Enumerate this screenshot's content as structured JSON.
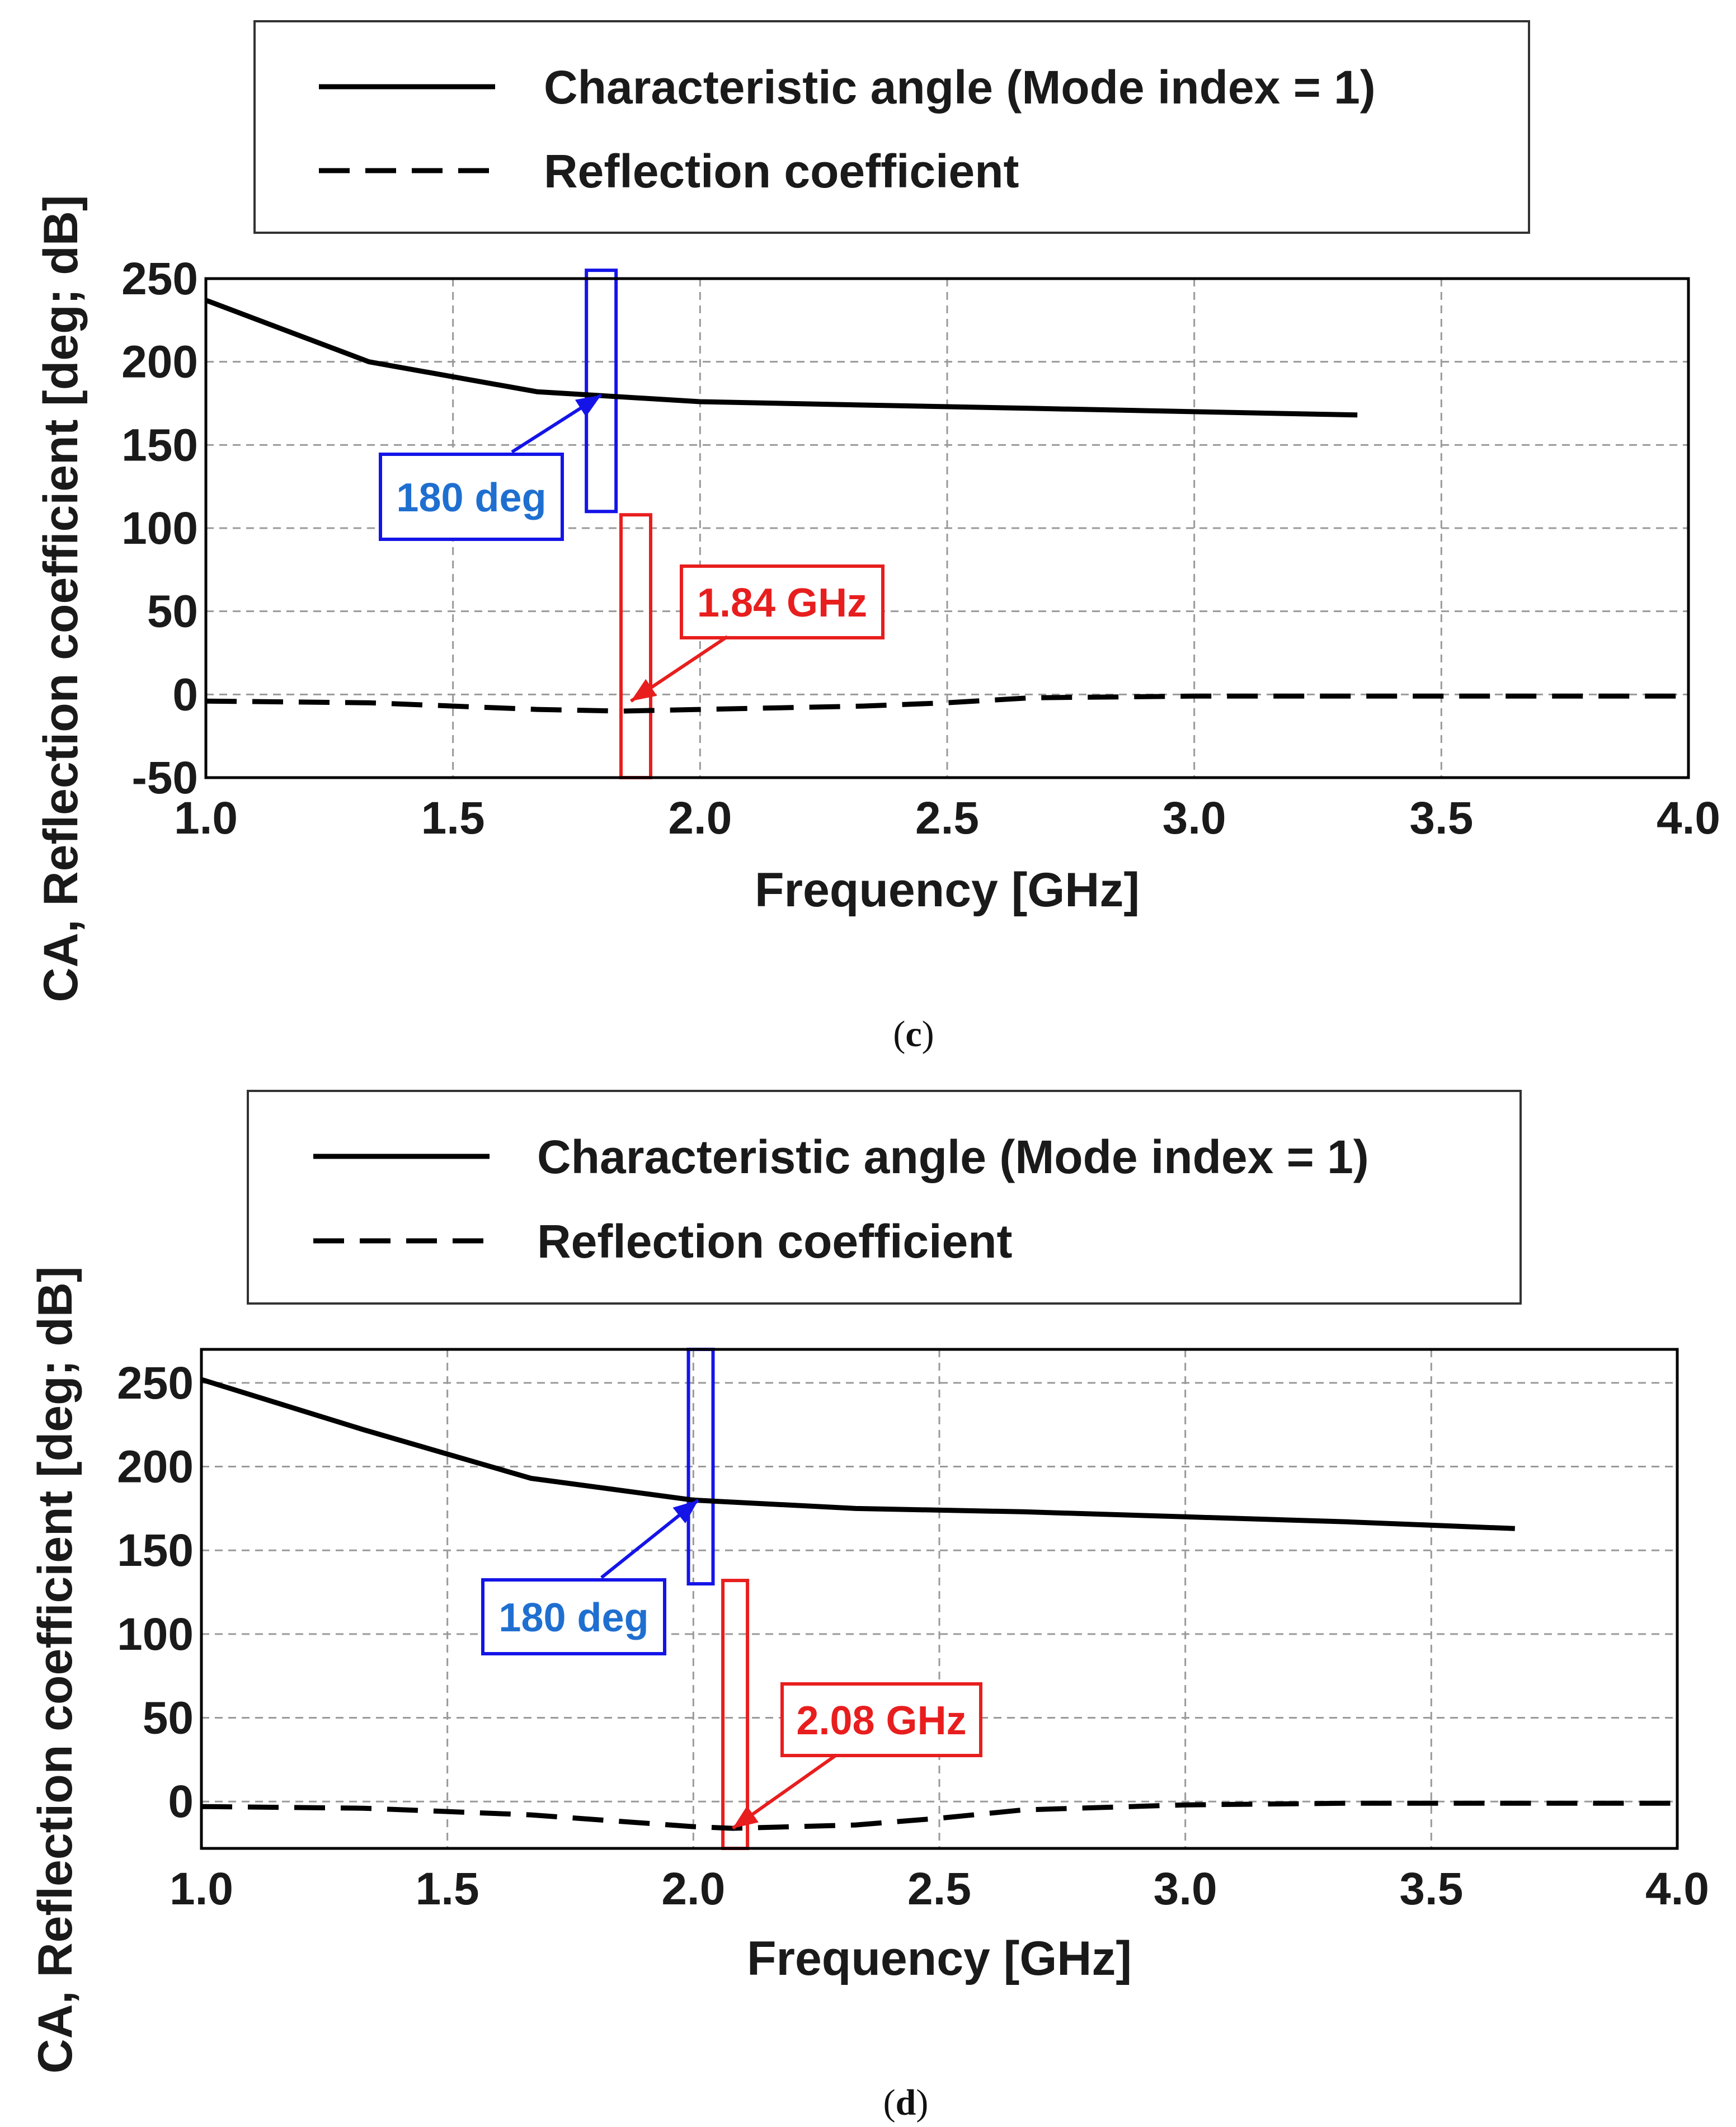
{
  "chart_data": [
    {
      "type": "line",
      "panel": "(c)",
      "caption_letter": "c",
      "xlabel": "Frequency [GHz]",
      "ylabel": "CA, Reflection coefficient [deg; dB]",
      "xlim": [
        1.0,
        4.0
      ],
      "ylim": [
        -50,
        250
      ],
      "xticks": [
        "1.0",
        "1.5",
        "2.0",
        "2.5",
        "3.0",
        "3.5",
        "4.0"
      ],
      "yticks": [
        "250",
        "200",
        "150",
        "100",
        "50",
        "0",
        "-50"
      ],
      "xtick_values": [
        1.0,
        1.5,
        2.0,
        2.5,
        3.0,
        3.5,
        4.0
      ],
      "ytick_values": [
        250,
        200,
        150,
        100,
        50,
        0,
        -50
      ],
      "grid": true,
      "legend": [
        {
          "label": "Characteristic angle (Mode index = 1)",
          "style": "solid"
        },
        {
          "label": "Reflection coefficient",
          "style": "dashed"
        }
      ],
      "series": [
        {
          "name": "Characteristic angle (Mode index = 1)",
          "style": "solid",
          "x": [
            1.0,
            1.33,
            1.67,
            2.0,
            2.33,
            2.67,
            3.0,
            3.33
          ],
          "y": [
            237,
            200,
            182,
            176,
            174,
            172,
            170,
            168
          ]
        },
        {
          "name": "Reflection coefficient",
          "style": "dashed",
          "x": [
            1.0,
            1.33,
            1.5,
            1.67,
            1.84,
            2.0,
            2.33,
            2.5,
            2.67,
            3.0,
            3.33,
            3.67,
            4.0
          ],
          "y": [
            -4,
            -5,
            -7,
            -9,
            -10,
            -9,
            -7,
            -5,
            -2,
            -1,
            -1,
            -1,
            -1
          ]
        }
      ],
      "annotations": [
        {
          "text": "180 deg",
          "color": "#1f6fd0",
          "box_color": "#1414e8",
          "marker_x": 1.8,
          "marker_y": 180,
          "band_x": [
            1.77,
            1.83
          ],
          "band_y": [
            110,
            255
          ]
        },
        {
          "text": "1.84 GHz",
          "color": "#e81e1e",
          "box_color": "#e81e1e",
          "marker_x": 1.86,
          "marker_y": -4,
          "band_x": [
            1.84,
            1.9
          ],
          "band_y": [
            -50,
            108
          ]
        }
      ]
    },
    {
      "type": "line",
      "panel": "(d)",
      "caption_letter": "d",
      "xlabel": "Frequency [GHz]",
      "ylabel": "CA, Reflection coefficient [deg; dB]",
      "xlim": [
        1.0,
        4.0
      ],
      "ylim": [
        -28,
        270
      ],
      "xticks": [
        "1.0",
        "1.5",
        "2.0",
        "2.5",
        "3.0",
        "3.5",
        "4.0"
      ],
      "yticks": [
        "250",
        "200",
        "150",
        "100",
        "50",
        "0"
      ],
      "xtick_values": [
        1.0,
        1.5,
        2.0,
        2.5,
        3.0,
        3.5,
        4.0
      ],
      "ytick_values": [
        250,
        200,
        150,
        100,
        50,
        0
      ],
      "grid": true,
      "legend": [
        {
          "label": "Characteristic angle (Mode index = 1)",
          "style": "solid"
        },
        {
          "label": "Reflection coefficient",
          "style": "dashed"
        }
      ],
      "series": [
        {
          "name": "Characteristic angle (Mode index = 1)",
          "style": "solid",
          "x": [
            1.0,
            1.33,
            1.67,
            2.0,
            2.33,
            2.67,
            3.0,
            3.33,
            3.67
          ],
          "y": [
            252,
            222,
            193,
            180,
            175,
            173,
            170,
            167,
            163
          ]
        },
        {
          "name": "Reflection coefficient",
          "style": "dashed",
          "x": [
            1.0,
            1.33,
            1.67,
            2.0,
            2.08,
            2.33,
            2.5,
            2.67,
            3.0,
            3.33,
            3.67,
            4.0
          ],
          "y": [
            -3,
            -4,
            -8,
            -15,
            -16,
            -14,
            -10,
            -5,
            -2,
            -1,
            -1,
            -1
          ]
        }
      ],
      "annotations": [
        {
          "text": "180 deg",
          "color": "#1f6fd0",
          "box_color": "#1414e8",
          "marker_x": 2.01,
          "marker_y": 180,
          "band_x": [
            1.99,
            2.04
          ],
          "band_y": [
            130,
            270
          ]
        },
        {
          "text": "2.08 GHz",
          "color": "#e81e1e",
          "box_color": "#e81e1e",
          "marker_x": 2.08,
          "marker_y": -16,
          "band_x": [
            2.06,
            2.11
          ],
          "band_y": [
            -28,
            132
          ]
        }
      ]
    }
  ]
}
